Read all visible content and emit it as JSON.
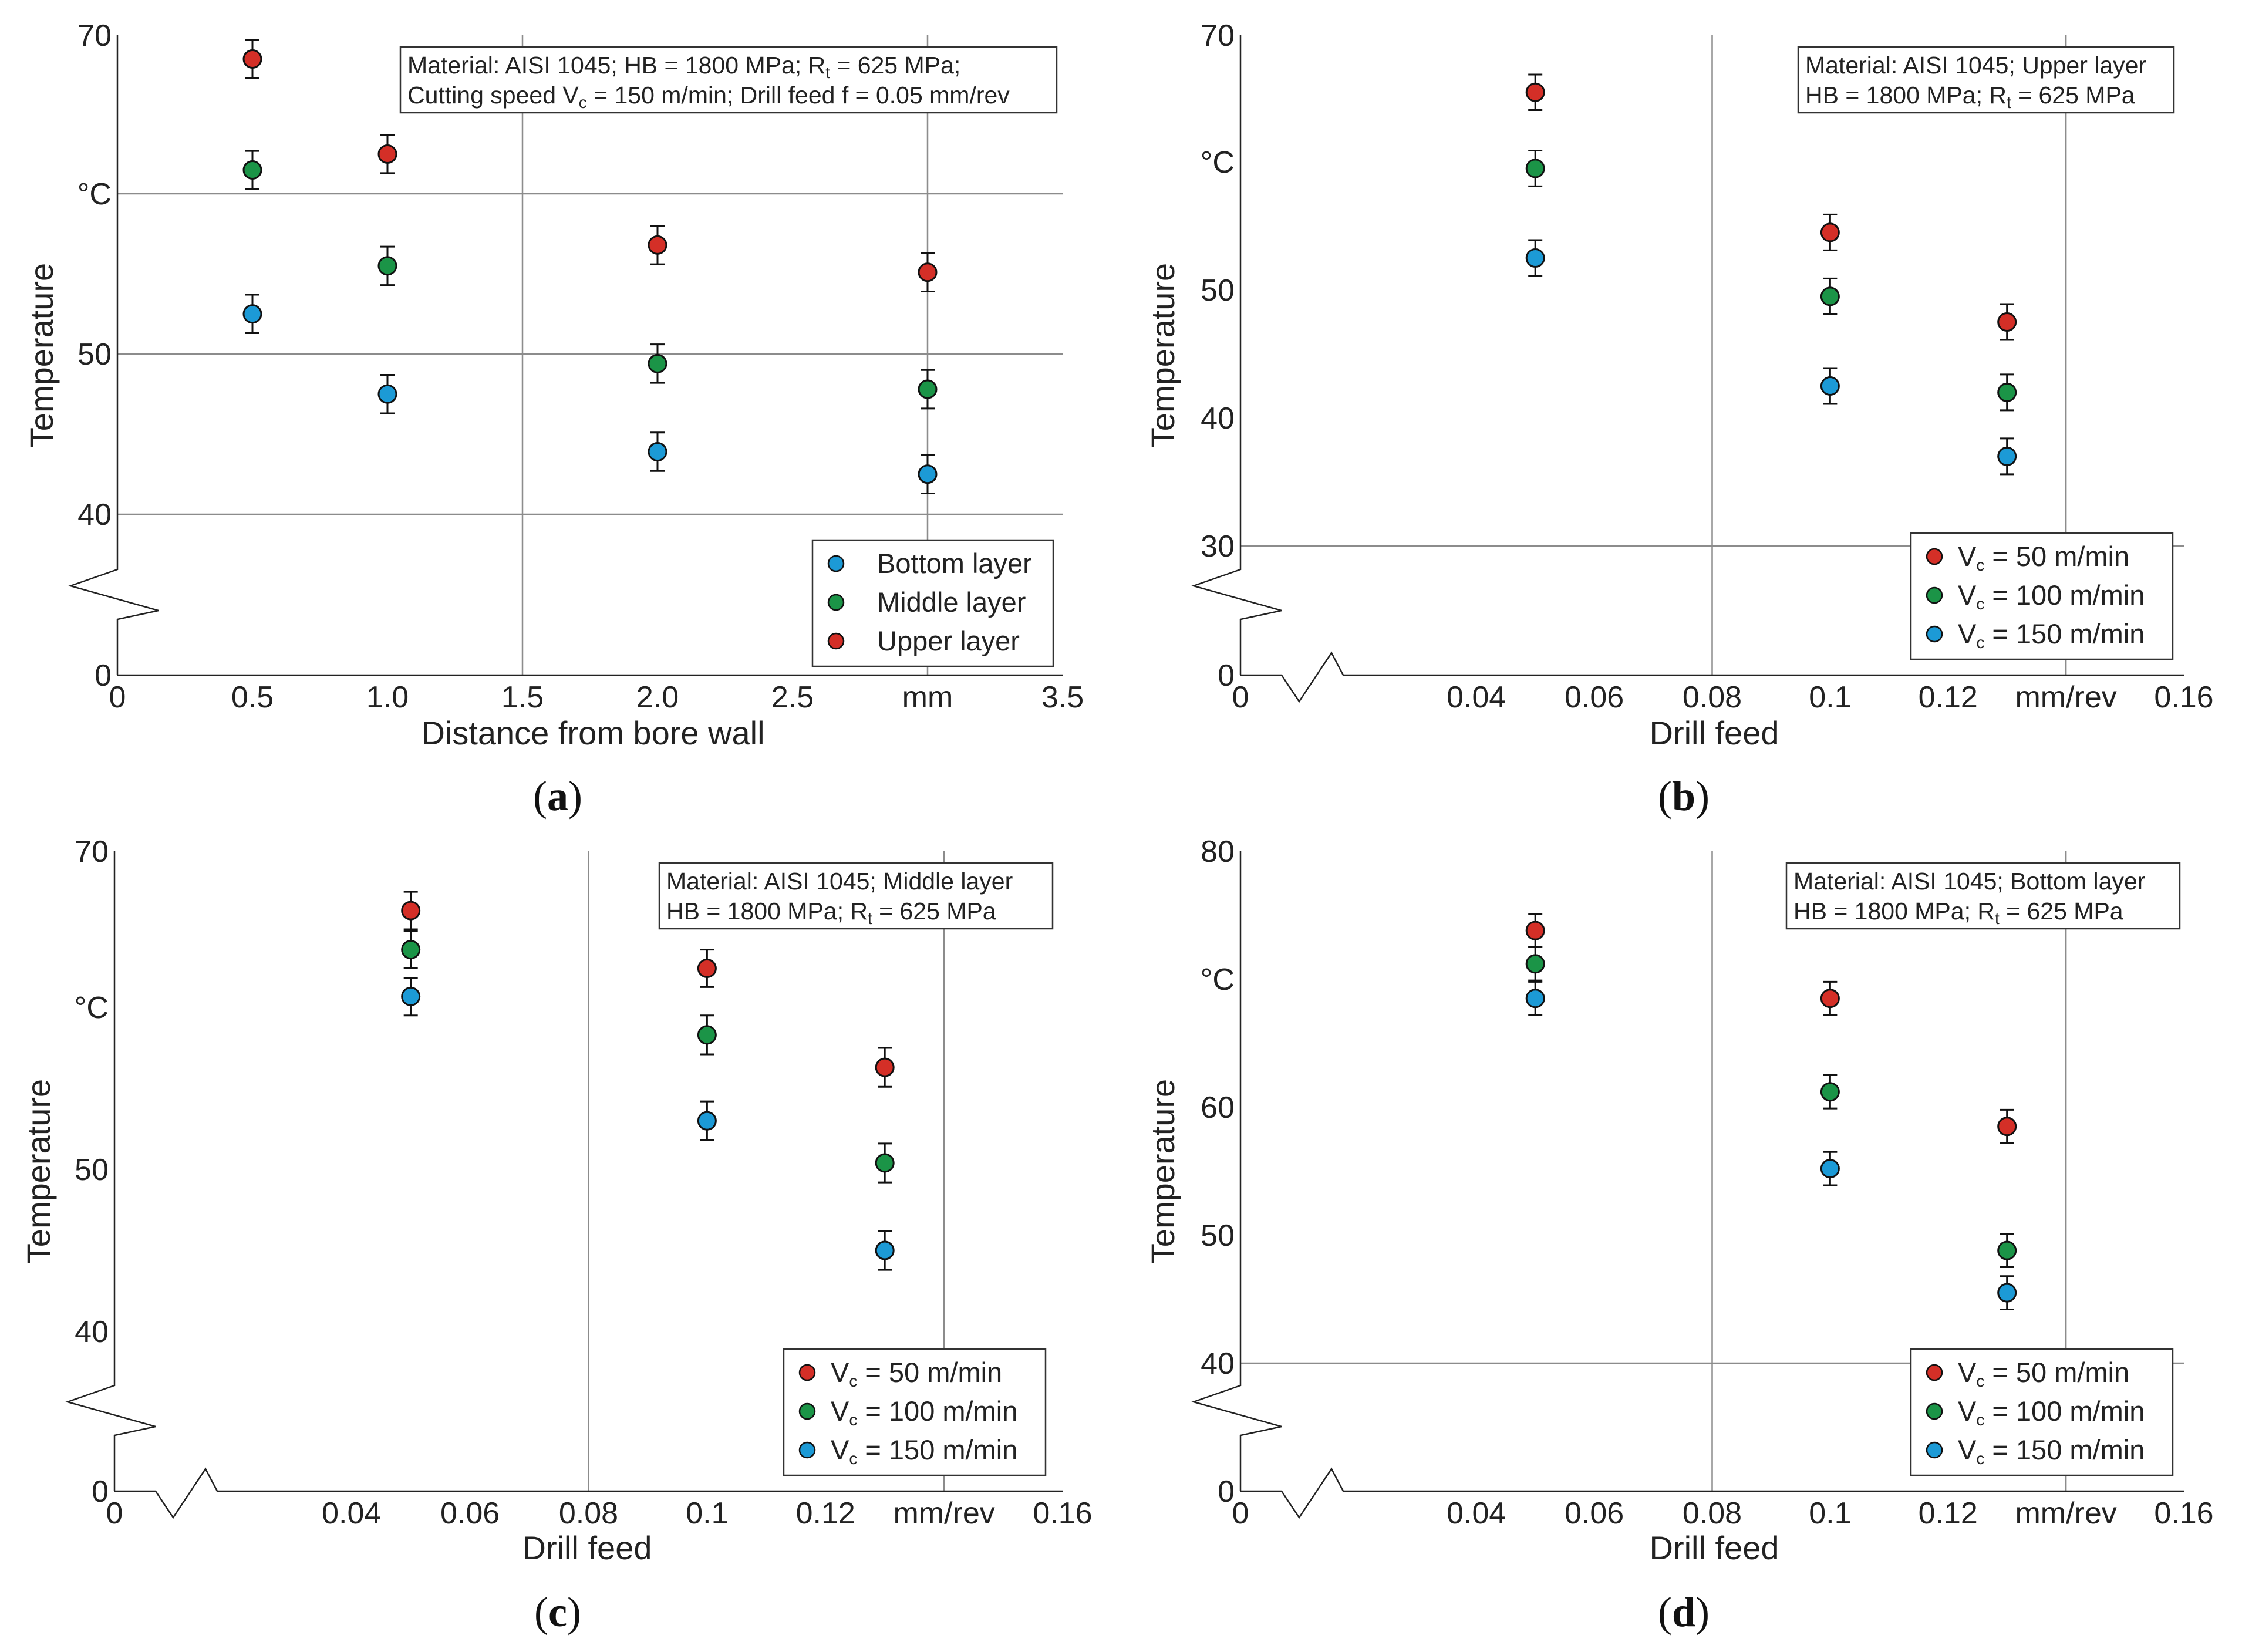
{
  "colors": {
    "red": "#d42f27",
    "green": "#1b9447",
    "blue": "#1c9ad6",
    "grid": "#8c8c8c",
    "axis": "#222222"
  },
  "chart_data": [
    {
      "id": "a",
      "type": "scatter",
      "panel_label": "a",
      "xlabel": "Distance from bore wall",
      "ylabel": "Temperature",
      "x_unit": "mm",
      "y_unit": "°C",
      "xlim": [
        0,
        3.5
      ],
      "ylim_display": [
        0,
        70
      ],
      "x_ticks": [
        "0",
        "0.5",
        "1.0",
        "1.5",
        "2.0",
        "2.5",
        "mm",
        "3.5"
      ],
      "y_ticks": [
        "0",
        "40",
        "50",
        "°C",
        "70"
      ],
      "annotation": [
        "Material: AISI 1045; HB = 1800 MPa; R",
        "t",
        " = 625 MPa;",
        "Cutting speed V",
        "c",
        " = 150 m/min; Drill feed f = 0.05 mm/rev"
      ],
      "legend": {
        "placement": "bottom-right",
        "entries": [
          "Bottom layer",
          "Middle layer",
          "Upper layer"
        ]
      },
      "series": [
        {
          "name": "Bottom layer",
          "color": "blue",
          "x": [
            0.5,
            1.0,
            2.0,
            3.0
          ],
          "y": [
            52.5,
            47.5,
            43.9,
            42.5
          ],
          "err": 1.2
        },
        {
          "name": "Middle layer",
          "color": "green",
          "x": [
            0.5,
            1.0,
            2.0,
            3.0
          ],
          "y": [
            61.5,
            55.5,
            49.4,
            47.8
          ],
          "err": 1.2
        },
        {
          "name": "Upper layer",
          "color": "red",
          "x": [
            0.5,
            1.0,
            2.0,
            3.0
          ],
          "y": [
            68.5,
            62.5,
            56.8,
            55.1
          ],
          "err": 1.2
        }
      ]
    },
    {
      "id": "b",
      "type": "scatter",
      "panel_label": "b",
      "xlabel": "Drill feed",
      "ylabel": "Temperature",
      "x_unit": "mm/rev",
      "y_unit": "°C",
      "xlim": [
        0,
        0.16
      ],
      "ylim_display": [
        0,
        70
      ],
      "x_ticks": [
        "0",
        "0.04",
        "0.06",
        "0.08",
        "0.1",
        "0.12",
        "mm/rev",
        "0.16"
      ],
      "y_ticks": [
        "0",
        "30",
        "40",
        "50",
        "°C",
        "70"
      ],
      "annotation": [
        "Material: AISI 1045; Upper layer",
        "HB = 1800 MPa; R",
        "t",
        " = 625 MPa"
      ],
      "legend": {
        "placement": "bottom-right",
        "entries": [
          [
            "V",
            "c",
            " = 50 m/min"
          ],
          [
            "V",
            "c",
            " = 100 m/min"
          ],
          [
            "V",
            "c",
            " = 150 m/min"
          ]
        ]
      },
      "series": [
        {
          "name": "Vc = 50 m/min",
          "color": "red",
          "x": [
            0.05,
            0.1,
            0.13
          ],
          "y": [
            65.5,
            54.5,
            47.5
          ],
          "err": 1.4
        },
        {
          "name": "Vc = 100 m/min",
          "color": "green",
          "x": [
            0.05,
            0.1,
            0.13
          ],
          "y": [
            59.5,
            49.5,
            42.0
          ],
          "err": 1.4
        },
        {
          "name": "Vc = 150 m/min",
          "color": "blue",
          "x": [
            0.05,
            0.1,
            0.13
          ],
          "y": [
            52.5,
            42.5,
            37.0
          ],
          "err": 1.4
        }
      ]
    },
    {
      "id": "c",
      "type": "scatter",
      "panel_label": "c",
      "xlabel": "Drill feed",
      "ylabel": "Temperature",
      "x_unit": "mm/rev",
      "y_unit": "°C",
      "xlim": [
        0,
        0.16
      ],
      "ylim_display": [
        0,
        70
      ],
      "x_ticks": [
        "0",
        "0.04",
        "0.06",
        "0.08",
        "0.1",
        "0.12",
        "mm/rev",
        "0.16"
      ],
      "y_ticks": [
        "0",
        "40",
        "50",
        "°C",
        "70"
      ],
      "annotation": [
        "Material: AISI 1045; Middle layer",
        "HB = 1800 MPa; R",
        "t",
        " = 625 MPa"
      ],
      "legend": {
        "placement": "bottom-right",
        "entries": [
          [
            "V",
            "c",
            " = 50 m/min"
          ],
          [
            "V",
            "c",
            " = 100 m/min"
          ],
          [
            "V",
            "c",
            " = 150 m/min"
          ]
        ]
      },
      "series": [
        {
          "name": "Vc = 50 m/min",
          "color": "red",
          "x": [
            0.05,
            0.1,
            0.13
          ],
          "y": [
            66.2,
            62.5,
            56.3
          ],
          "err": 1.2
        },
        {
          "name": "Vc = 100 m/min",
          "color": "green",
          "x": [
            0.05,
            0.1,
            0.13
          ],
          "y": [
            63.7,
            58.3,
            50.4
          ],
          "err": 1.2
        },
        {
          "name": "Vc = 150 m/min",
          "color": "blue",
          "x": [
            0.05,
            0.1,
            0.13
          ],
          "y": [
            60.7,
            53.0,
            45.0
          ],
          "err": 1.2
        }
      ]
    },
    {
      "id": "d",
      "type": "scatter",
      "panel_label": "d",
      "xlabel": "Drill feed",
      "ylabel": "Temperature",
      "x_unit": "mm/rev",
      "y_unit": "°C",
      "xlim": [
        0,
        0.16
      ],
      "ylim_display": [
        0,
        80
      ],
      "x_ticks": [
        "0",
        "0.04",
        "0.06",
        "0.08",
        "0.1",
        "0.12",
        "mm/rev",
        "0.16"
      ],
      "y_ticks": [
        "0",
        "40",
        "50",
        "60",
        "°C",
        "80"
      ],
      "annotation": [
        "Material: AISI 1045; Bottom layer",
        "HB = 1800 MPa; R",
        "t",
        " = 625 MPa"
      ],
      "legend": {
        "placement": "bottom-right",
        "entries": [
          [
            "V",
            "c",
            " = 50 m/min"
          ],
          [
            "V",
            "c",
            " = 100 m/min"
          ],
          [
            "V",
            "c",
            " = 150 m/min"
          ]
        ]
      },
      "series": [
        {
          "name": "Vc = 50 m/min",
          "color": "red",
          "x": [
            0.05,
            0.1,
            0.13
          ],
          "y": [
            73.8,
            68.5,
            58.5
          ],
          "err": 1.3
        },
        {
          "name": "Vc = 100 m/min",
          "color": "green",
          "x": [
            0.05,
            0.1,
            0.13
          ],
          "y": [
            71.2,
            61.2,
            48.8
          ],
          "err": 1.3
        },
        {
          "name": "Vc = 150 m/min",
          "color": "blue",
          "x": [
            0.05,
            0.1,
            0.13
          ],
          "y": [
            68.5,
            55.2,
            45.5
          ],
          "err": 1.3
        }
      ]
    }
  ]
}
